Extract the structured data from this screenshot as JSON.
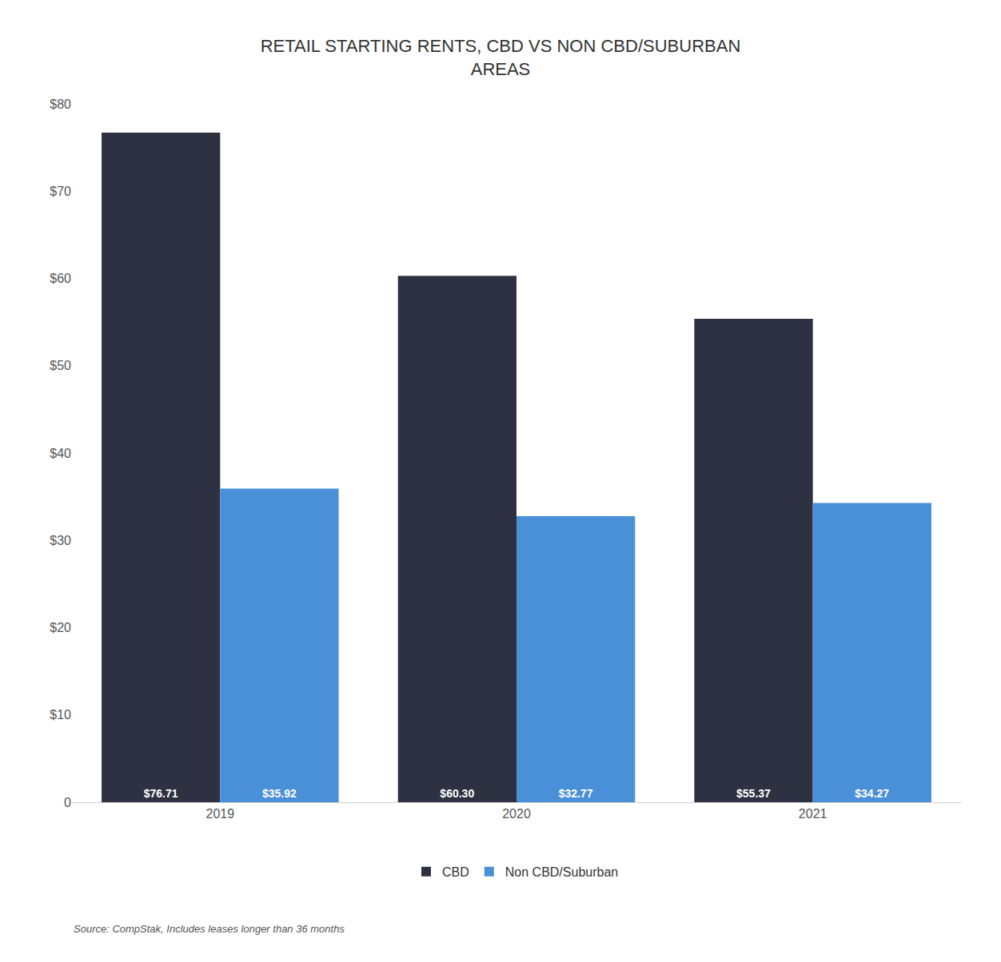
{
  "chart_data": {
    "type": "bar",
    "title": "RETAIL STARTING RENTS, CBD VS NON CBD/SUBURBAN\nAREAS",
    "categories": [
      "2019",
      "2020",
      "2021"
    ],
    "series": [
      {
        "name": "CBD",
        "color": "#2d3142",
        "values": [
          76.71,
          60.3,
          55.37
        ],
        "value_labels": [
          "$76.71",
          "$60.30",
          "$55.37"
        ]
      },
      {
        "name": "Non CBD/Suburban",
        "color": "#4a90d9",
        "values": [
          35.92,
          32.77,
          34.27
        ],
        "value_labels": [
          "$35.92",
          "$32.77",
          "$34.27"
        ]
      }
    ],
    "ylim": [
      0,
      80
    ],
    "yticks": [
      0,
      {
        "value": 10,
        "label": "$10"
      },
      {
        "value": 20,
        "label": "$20"
      },
      {
        "value": 30,
        "label": "$30"
      },
      {
        "value": 40,
        "label": "$40"
      },
      {
        "value": 50,
        "label": "$50"
      },
      {
        "value": 60,
        "label": "$60"
      },
      {
        "value": 70,
        "label": "$70"
      },
      {
        "value": 80,
        "label": "$80"
      }
    ],
    "grid": false,
    "legend": "bottom",
    "data_labels": true,
    "annotations": [
      "Source: CompStak, Includes leases longer than 36 months"
    ]
  }
}
